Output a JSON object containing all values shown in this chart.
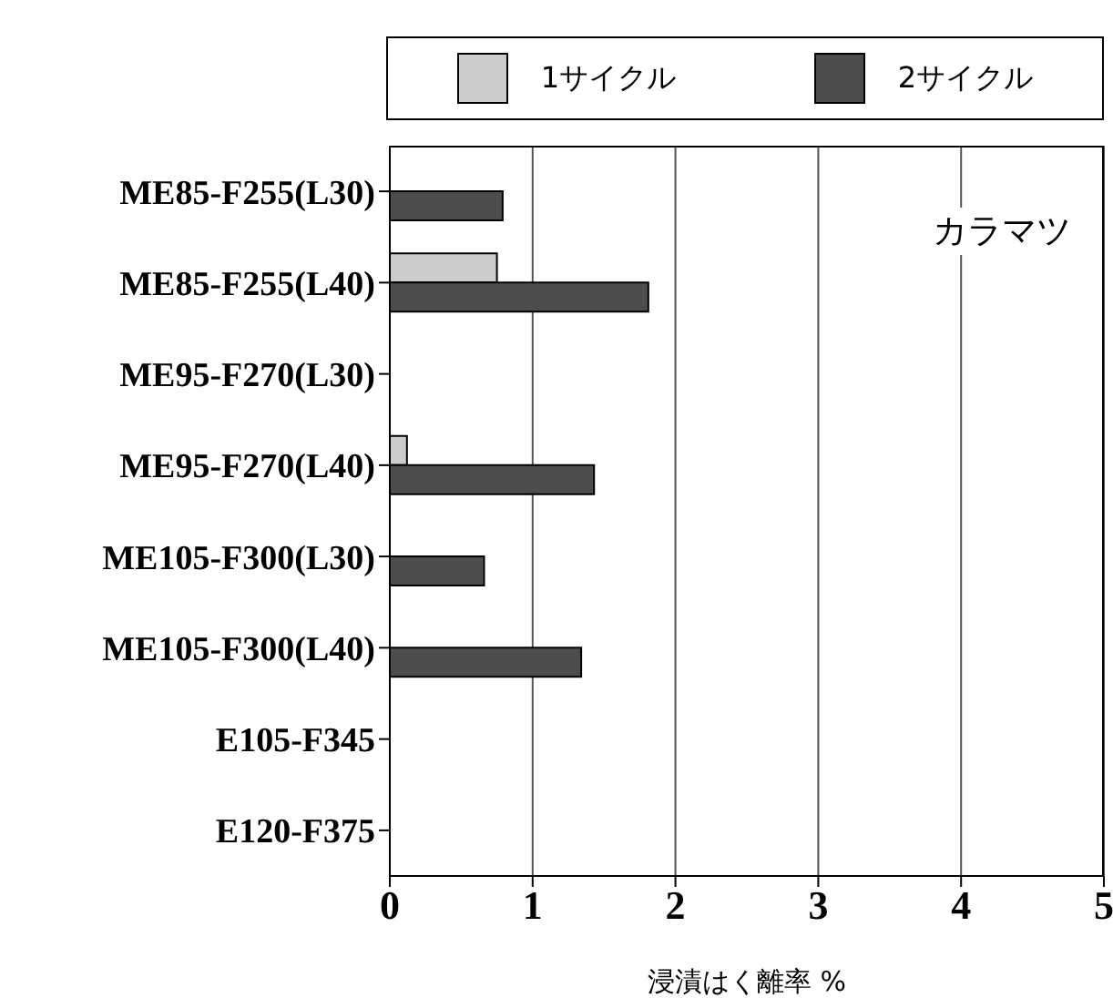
{
  "chart_data": {
    "type": "bar",
    "orientation": "horizontal",
    "xlabel": "浸漬はく離率 %",
    "annotations": [
      "カラマツ"
    ],
    "categories": [
      "ME85-F255(L30)",
      "ME85-F255(L40)",
      "ME95-F270(L30)",
      "ME95-F270(L40)",
      "ME105-F300(L30)",
      "ME105-F300(L40)",
      "E105-F345",
      "E120-F375"
    ],
    "series": [
      {
        "name": "1サイクル",
        "color": "#cccccc",
        "values": [
          0,
          0.75,
          0,
          0.12,
          0,
          0,
          0,
          0
        ]
      },
      {
        "name": "2サイクル",
        "color": "#4d4d4d",
        "values": [
          0.79,
          1.81,
          0,
          1.43,
          0.66,
          1.34,
          0,
          0
        ]
      }
    ],
    "xlim": [
      0,
      5
    ],
    "xticks": [
      0,
      1,
      2,
      3,
      4,
      5
    ],
    "grid": "x",
    "legend": "top"
  }
}
